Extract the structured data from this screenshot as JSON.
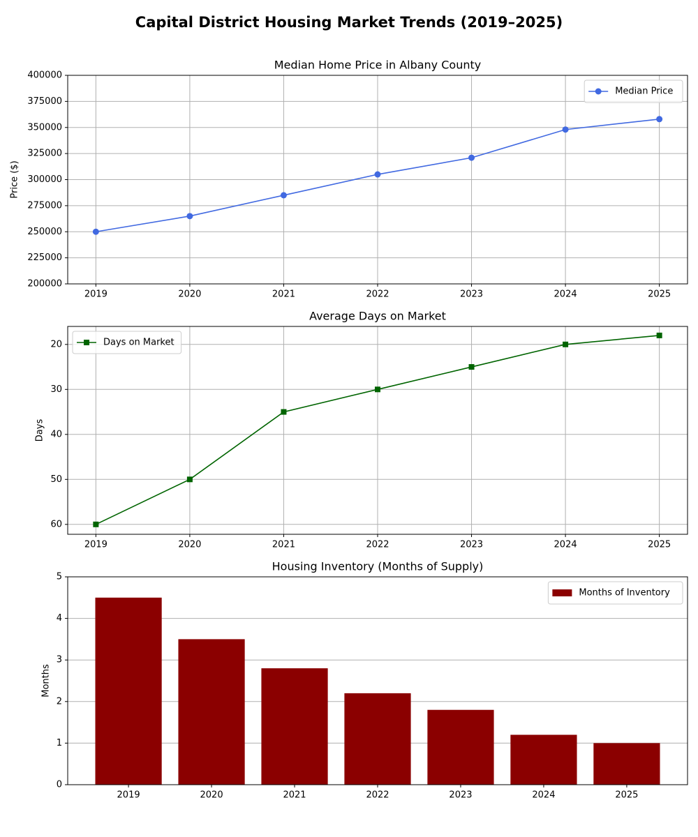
{
  "title": "Capital District Housing Market Trends (2019–2025)",
  "chart_data": [
    {
      "type": "line",
      "title": "Median Home Price in Albany County",
      "y_label": "Price ($)",
      "x": [
        2019,
        2020,
        2021,
        2022,
        2023,
        2024,
        2025
      ],
      "series": [
        {
          "name": "Median Price",
          "color": "#4169e1",
          "marker": "circle",
          "values": [
            250000,
            265000,
            285000,
            305000,
            321000,
            348000,
            358000
          ]
        }
      ],
      "xlim": [
        2018.7,
        2025.3
      ],
      "xticks": [
        2019,
        2020,
        2021,
        2022,
        2023,
        2024,
        2025
      ],
      "ylim": [
        200000,
        400000
      ],
      "yticks": [
        200000,
        225000,
        250000,
        275000,
        300000,
        325000,
        350000,
        375000,
        400000
      ],
      "grid": true,
      "legend": "upper-right"
    },
    {
      "type": "line",
      "title": "Average Days on Market",
      "y_label": "Days",
      "x": [
        2019,
        2020,
        2021,
        2022,
        2023,
        2024,
        2025
      ],
      "series": [
        {
          "name": "Days on Market",
          "color": "#006400",
          "marker": "square",
          "values": [
            60,
            50,
            35,
            30,
            25,
            20,
            18
          ]
        }
      ],
      "xlim": [
        2018.7,
        2025.3
      ],
      "xticks": [
        2019,
        2020,
        2021,
        2022,
        2023,
        2024,
        2025
      ],
      "ylim": [
        62.2,
        16
      ],
      "yticks": [
        20,
        30,
        40,
        50,
        60
      ],
      "grid": true,
      "legend": "upper-left"
    },
    {
      "type": "bar",
      "title": "Housing Inventory (Months of Supply)",
      "y_label": "Months",
      "categories": [
        "2019",
        "2020",
        "2021",
        "2022",
        "2023",
        "2024",
        "2025"
      ],
      "series": [
        {
          "name": "Months of Inventory",
          "color": "#8b0000",
          "values": [
            4.5,
            3.5,
            2.8,
            2.2,
            1.8,
            1.2,
            1.0
          ]
        }
      ],
      "ylim": [
        0,
        5
      ],
      "yticks": [
        0,
        1,
        2,
        3,
        4,
        5
      ],
      "grid": true,
      "legend": "upper-right"
    }
  ]
}
